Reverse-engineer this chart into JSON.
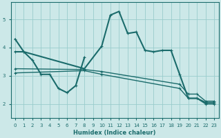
{
  "xlabel": "Humidex (Indice chaleur)",
  "bg_color": "#cce8e8",
  "grid_color": "#99cccc",
  "line_color": "#1a6b6b",
  "xlim": [
    -0.5,
    23.5
  ],
  "ylim": [
    1.5,
    5.6
  ],
  "yticks": [
    2,
    3,
    4,
    5
  ],
  "xticks": [
    0,
    1,
    2,
    3,
    4,
    5,
    6,
    7,
    8,
    9,
    10,
    11,
    12,
    13,
    14,
    15,
    16,
    17,
    18,
    19,
    20,
    21,
    22,
    23
  ],
  "lines": [
    {
      "x": [
        0,
        1,
        2,
        3,
        4,
        5,
        6,
        7,
        8
      ],
      "y": [
        4.3,
        3.85,
        3.55,
        3.05,
        3.05,
        2.55,
        2.4,
        2.65,
        3.65
      ],
      "lw": 1.5
    },
    {
      "x": [
        0,
        1,
        8,
        10,
        11,
        12,
        13,
        14,
        15,
        16,
        17,
        18,
        19,
        20,
        21,
        22,
        23
      ],
      "y": [
        3.85,
        3.85,
        3.25,
        4.05,
        5.15,
        5.28,
        4.5,
        4.55,
        3.9,
        3.85,
        3.9,
        3.9,
        3.05,
        2.2,
        2.2,
        2.05,
        2.05
      ],
      "lw": 1.5
    },
    {
      "x": [
        0,
        8,
        10,
        19,
        20,
        21,
        22,
        23
      ],
      "y": [
        3.25,
        3.22,
        3.15,
        2.7,
        2.35,
        2.35,
        2.1,
        2.1
      ],
      "lw": 1.0
    },
    {
      "x": [
        0,
        8,
        10,
        19,
        20,
        21,
        22,
        23
      ],
      "y": [
        3.1,
        3.18,
        3.05,
        2.55,
        2.2,
        2.2,
        2.0,
        2.0
      ],
      "lw": 1.0
    }
  ]
}
